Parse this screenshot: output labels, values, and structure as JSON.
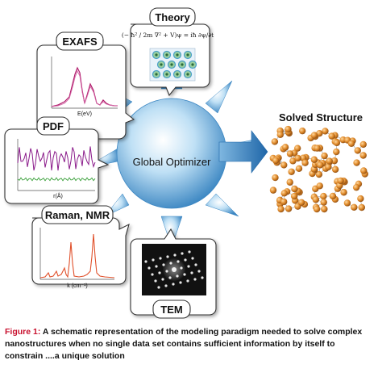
{
  "panels": {
    "theory": {
      "title": "Theory",
      "equation_lhs": "(− ħ² / 2m ∇² + V)ψ = iħ ∂ψ/∂t"
    },
    "exafs": {
      "title": "EXAFS",
      "xlabel": "E(eV)"
    },
    "pdf": {
      "title": "PDF",
      "xlabel": "r(Å)"
    },
    "raman": {
      "title": "Raman, NMR",
      "xlabel": "k (cm⁻¹)"
    },
    "tem": {
      "title": "TEM"
    }
  },
  "hub": {
    "label": "Global Optimizer"
  },
  "result": {
    "title": "Solved Structure"
  },
  "caption": {
    "lead": "Figure 1:",
    "text": " A schematic representation of the modeling paradigm needed to solve complex nanostructures when no single data set contains sufficient information by itself to constrain ....a unique solution"
  },
  "colors": {
    "hub": "#6aa9d6",
    "arrow": "#2f79b8",
    "exafs_trace": "#b01a6a",
    "pdf_trace": "#8a1a8a",
    "pdf_diff": "#3aa03a",
    "raman_trace": "#e0502a",
    "atom": "#e08a2a"
  }
}
